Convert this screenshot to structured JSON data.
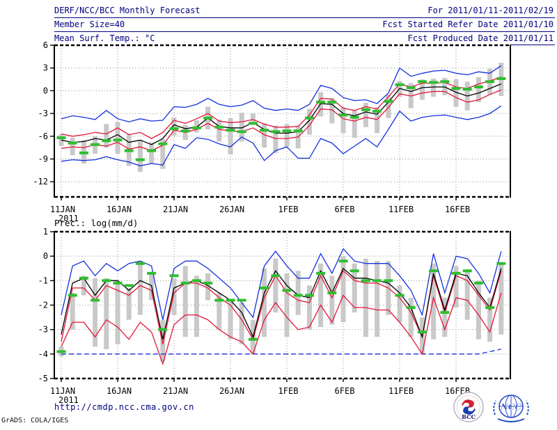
{
  "header": {
    "rows": [
      {
        "left": "DERF/NCC/BCC Monthly Forecast",
        "right": "For 2011/01/11-2011/02/19"
      },
      {
        "left": "Member Size=40",
        "right": "Fcst Started Refer Date 2011/01/10"
      },
      {
        "left": "Mean Surf. Temp.: °C",
        "right": "Fcst Produced Date 2011/01/11"
      }
    ],
    "text_color": "#00007e"
  },
  "footer": {
    "url": "http://cmdp.ncc.cma.gov.cn",
    "credit": "GrADS: COLA/IGES",
    "logos": [
      {
        "name": "bcc-logo",
        "label": "BCC"
      },
      {
        "name": "ncc-logo",
        "label": "NCC"
      }
    ]
  },
  "colors": {
    "envelope_blue": "#1530dd",
    "sigma_red": "#e41538",
    "mean_black": "#000000",
    "obs_green": "#2fbe2f",
    "spread_bar_gray": "#c9c9c9",
    "grid_gray": "#909090",
    "header_navy": "#00007e"
  },
  "chart_data": [
    {
      "type": "line",
      "title": "Mean Surf. Temp.: °C",
      "x_tick_labels": [
        "11JAN",
        "16JAN",
        "21JAN",
        "26JAN",
        "1FEB",
        "6FEB",
        "11FEB",
        "16FEB"
      ],
      "x_sub_label": "2011",
      "x_start": "11JAN2011",
      "x_end": "19FEB2011",
      "n_points": 40,
      "ylim": [
        -14,
        6
      ],
      "yticks": [
        6,
        3,
        0,
        -3,
        -6,
        -9,
        -12
      ],
      "grid": "dotted",
      "legend": "none",
      "bars": {
        "name": "ensemble-spread-bar",
        "lo": [
          -7.3,
          -8.5,
          -9.6,
          -8.3,
          -7.5,
          -8.3,
          -9.9,
          -10.7,
          -9.6,
          -10.3,
          -5.9,
          -6.5,
          -5.5,
          -5.1,
          -6.7,
          -8.4,
          -6.7,
          -4.1,
          -7.5,
          -8.2,
          -7.4,
          -7.6,
          -5.8,
          -3.4,
          -4.3,
          -5.6,
          -6.2,
          -4.8,
          -5.6,
          -3.6,
          -0.8,
          -2.3,
          -1.2,
          -0.8,
          -0.6,
          -2.1,
          -2.6,
          -1.5,
          -0.5,
          -0.7
        ],
        "hi": [
          -5.7,
          -6.2,
          -6.5,
          -6.0,
          -4.4,
          -4.1,
          -5.8,
          -6.6,
          -6.8,
          -6.4,
          -3.5,
          -4.5,
          -3.9,
          -2.1,
          -3.8,
          -3.6,
          -2.9,
          -3.0,
          -4.3,
          -4.6,
          -4.4,
          -4.6,
          -2.4,
          -0.2,
          -1.0,
          -2.2,
          -2.6,
          -1.6,
          -2.2,
          -0.5,
          1.3,
          1.0,
          1.5,
          1.6,
          1.7,
          1.5,
          1.2,
          1.8,
          2.9,
          3.7
        ]
      },
      "series": [
        {
          "name": "ensemble-max",
          "color": "#1530dd",
          "style": "line",
          "values": [
            -3.7,
            -3.3,
            -3.5,
            -3.8,
            -2.6,
            -3.7,
            -4.1,
            -3.7,
            -4.0,
            -3.9,
            -2.1,
            -2.2,
            -1.8,
            -1.0,
            -1.8,
            -2.1,
            -1.9,
            -1.3,
            -2.3,
            -2.6,
            -2.4,
            -2.6,
            -1.8,
            0.7,
            0.3,
            -0.9,
            -1.3,
            -1.2,
            -1.7,
            -0.3,
            3.0,
            1.9,
            2.3,
            2.6,
            2.7,
            2.3,
            2.1,
            2.5,
            2.3,
            3.3
          ]
        },
        {
          "name": "ensemble-min",
          "color": "#1530dd",
          "style": "line",
          "values": [
            -9.3,
            -9.1,
            -9.2,
            -9.1,
            -8.7,
            -9.1,
            -9.4,
            -9.9,
            -9.6,
            -9.8,
            -7.1,
            -7.6,
            -6.2,
            -6.4,
            -7.0,
            -7.4,
            -6.1,
            -6.9,
            -9.2,
            -7.9,
            -7.4,
            -8.9,
            -8.9,
            -6.3,
            -6.9,
            -8.3,
            -7.3,
            -6.3,
            -7.4,
            -5.1,
            -2.7,
            -4.0,
            -3.5,
            -3.3,
            -3.2,
            -3.5,
            -3.8,
            -3.5,
            -3.0,
            -2.0
          ]
        },
        {
          "name": "upper-sigma",
          "color": "#e41538",
          "style": "line",
          "values": [
            -5.7,
            -6.0,
            -5.8,
            -5.5,
            -5.7,
            -4.9,
            -5.8,
            -5.5,
            -6.3,
            -5.5,
            -3.9,
            -4.3,
            -3.7,
            -3.0,
            -4.0,
            -4.2,
            -4.1,
            -3.8,
            -4.4,
            -4.8,
            -4.8,
            -4.7,
            -3.2,
            -1.0,
            -1.1,
            -2.3,
            -2.6,
            -2.1,
            -2.4,
            -0.8,
            0.9,
            0.5,
            1.0,
            1.0,
            1.1,
            0.5,
            0.3,
            0.9,
            1.3,
            1.8
          ]
        },
        {
          "name": "lower-sigma",
          "color": "#e41538",
          "style": "line",
          "values": [
            -7.6,
            -7.4,
            -7.5,
            -7.1,
            -7.3,
            -6.8,
            -7.7,
            -7.4,
            -7.9,
            -7.2,
            -5.2,
            -5.5,
            -5.1,
            -4.3,
            -5.1,
            -5.3,
            -5.4,
            -4.9,
            -5.8,
            -6.3,
            -6.3,
            -6.1,
            -4.6,
            -2.4,
            -2.5,
            -3.7,
            -4.0,
            -3.5,
            -3.8,
            -2.2,
            -0.4,
            -0.7,
            -0.3,
            -0.1,
            -0.1,
            -0.9,
            -1.5,
            -1.2,
            -0.5,
            0.1
          ]
        },
        {
          "name": "ensemble-mean",
          "color": "#000000",
          "style": "line",
          "values": [
            -6.5,
            -6.8,
            -6.7,
            -6.3,
            -6.5,
            -5.8,
            -6.8,
            -6.5,
            -7.1,
            -6.3,
            -4.5,
            -5.0,
            -4.8,
            -3.6,
            -4.7,
            -4.9,
            -4.9,
            -4.2,
            -5.1,
            -5.6,
            -5.6,
            -5.4,
            -3.9,
            -1.7,
            -1.8,
            -3.0,
            -3.3,
            -2.8,
            -3.1,
            -1.5,
            0.3,
            -0.1,
            0.4,
            0.5,
            0.5,
            -0.2,
            -0.7,
            -0.3,
            0.3,
            0.9
          ]
        },
        {
          "name": "observation-dash",
          "color": "#2fbe2f",
          "style": "ticks",
          "values": [
            -6.2,
            -6.9,
            -8.2,
            -7.1,
            -6.6,
            -6.5,
            -7.9,
            -9.1,
            -7.9,
            -7.0,
            -5.0,
            -5.3,
            -4.9,
            -3.6,
            -4.8,
            -5.2,
            -5.4,
            -4.3,
            -5.2,
            -5.4,
            -5.3,
            -5.3,
            -3.6,
            -1.5,
            -1.5,
            -3.2,
            -3.5,
            -2.5,
            -2.7,
            -1.4,
            0.8,
            0.4,
            1.2,
            1.1,
            1.2,
            0.3,
            0.2,
            0.5,
            1.2,
            1.6
          ]
        }
      ]
    },
    {
      "type": "line",
      "title": "Prec.: log(mm/d)",
      "x_tick_labels": [
        "11JAN",
        "16JAN",
        "21JAN",
        "26JAN",
        "1FEB",
        "6FEB",
        "11FEB",
        "16FEB"
      ],
      "x_sub_label": "2011",
      "x_start": "11JAN2011",
      "x_end": "19FEB2011",
      "n_points": 40,
      "ylim": [
        -5,
        1
      ],
      "yticks": [
        1,
        0,
        -1,
        -2,
        -3,
        -4,
        -5
      ],
      "grid": "dotted",
      "legend": "none",
      "bars": {
        "name": "ensemble-spread-bar",
        "lo": [
          -4.1,
          -3.0,
          -1.6,
          -3.7,
          -3.8,
          -3.6,
          -2.6,
          -2.4,
          -1.8,
          -4.3,
          -2.4,
          -3.3,
          -3.3,
          -1.8,
          -3.0,
          -3.4,
          -3.6,
          -4.0,
          -3.3,
          -2.3,
          -3.3,
          -2.4,
          -3.0,
          -2.9,
          -2.8,
          -2.7,
          -2.3,
          -3.3,
          -3.3,
          -2.4,
          -2.7,
          -3.3,
          -4.0,
          -3.4,
          -3.3,
          -2.1,
          -2.6,
          -3.4,
          -3.5,
          -3.2
        ],
        "hi": [
          -3.7,
          -1.5,
          -0.8,
          -0.9,
          -0.9,
          -1.0,
          -1.3,
          -0.2,
          -0.7,
          -2.6,
          -0.9,
          -0.4,
          -0.8,
          -0.7,
          -1.5,
          -1.8,
          -1.9,
          -2.6,
          -0.5,
          -0.1,
          -0.7,
          -0.6,
          -1.2,
          -0.3,
          -0.8,
          0.0,
          -0.3,
          -0.1,
          -0.2,
          -0.2,
          -1.2,
          -1.7,
          -2.5,
          -0.3,
          -1.7,
          -0.4,
          -0.6,
          -1.0,
          -1.7,
          -0.3
        ]
      },
      "series": [
        {
          "name": "ensemble-max",
          "color": "#1530dd",
          "style": "line",
          "values": [
            -2.4,
            -0.4,
            -0.2,
            -0.8,
            -0.3,
            -0.6,
            -0.3,
            -0.2,
            -0.4,
            -2.6,
            -0.5,
            -0.2,
            -0.2,
            -0.5,
            -0.9,
            -1.3,
            -1.9,
            -2.5,
            -0.4,
            0.2,
            -0.4,
            -0.9,
            -0.9,
            0.1,
            -0.7,
            0.3,
            -0.2,
            -0.3,
            -0.3,
            -0.3,
            -0.8,
            -1.4,
            -2.4,
            0.1,
            -1.5,
            0.0,
            -0.1,
            -0.7,
            -1.5,
            0.2
          ]
        },
        {
          "name": "ensemble-min",
          "color": "#1530dd",
          "style": "dashed",
          "values": [
            -4,
            -4,
            -4,
            -4,
            -4,
            -4,
            -4,
            -4,
            -4,
            -4,
            -4,
            -4,
            -4,
            -4,
            -4,
            -4,
            -4,
            -4,
            -4,
            -4,
            -4,
            -4,
            -4,
            -4,
            -4,
            -4,
            -4,
            -4,
            -4,
            -4,
            -4,
            -4,
            -4,
            -4,
            -4,
            -4,
            -4,
            -4,
            -3.9,
            -3.8
          ]
        },
        {
          "name": "upper-sigma",
          "color": "#e41538",
          "style": "line",
          "values": [
            -3.5,
            -1.3,
            -1.3,
            -1.8,
            -1.2,
            -1.4,
            -1.6,
            -1.2,
            -1.4,
            -3.6,
            -1.5,
            -1.1,
            -1.1,
            -1.3,
            -1.7,
            -2.0,
            -2.6,
            -3.4,
            -1.7,
            -0.8,
            -1.5,
            -1.8,
            -1.9,
            -0.8,
            -1.7,
            -0.6,
            -1.0,
            -1.1,
            -1.1,
            -1.3,
            -1.7,
            -2.3,
            -3.3,
            -0.8,
            -2.3,
            -0.8,
            -1.0,
            -1.6,
            -2.2,
            -0.6
          ]
        },
        {
          "name": "lower-sigma",
          "color": "#e41538",
          "style": "line",
          "values": [
            -3.7,
            -2.7,
            -2.7,
            -3.3,
            -2.6,
            -2.9,
            -3.4,
            -2.7,
            -3.1,
            -4.4,
            -2.8,
            -2.4,
            -2.4,
            -2.6,
            -3.0,
            -3.3,
            -3.5,
            -4.0,
            -2.6,
            -1.9,
            -2.5,
            -3.0,
            -2.9,
            -2.0,
            -2.7,
            -1.6,
            -2.1,
            -2.1,
            -2.2,
            -2.2,
            -2.7,
            -3.3,
            -4.0,
            -1.7,
            -3.0,
            -1.7,
            -1.8,
            -2.4,
            -3.1,
            -1.5
          ]
        },
        {
          "name": "ensemble-mean",
          "color": "#000000",
          "style": "line",
          "values": [
            -3.2,
            -1.1,
            -0.9,
            -1.6,
            -1.0,
            -1.0,
            -1.4,
            -1.0,
            -1.2,
            -3.4,
            -1.3,
            -1.1,
            -1.0,
            -1.2,
            -1.5,
            -1.8,
            -2.3,
            -3.3,
            -1.5,
            -0.6,
            -1.2,
            -1.6,
            -1.7,
            -0.6,
            -1.5,
            -0.5,
            -0.9,
            -0.9,
            -1.0,
            -1.1,
            -1.5,
            -2.1,
            -3.3,
            -0.7,
            -2.2,
            -0.7,
            -0.8,
            -1.5,
            -2.1,
            -0.5
          ]
        },
        {
          "name": "observation-dash",
          "color": "#2fbe2f",
          "style": "ticks",
          "values": [
            -3.9,
            -1.6,
            -0.9,
            -1.8,
            -1.0,
            -1.1,
            -1.2,
            -0.3,
            -0.7,
            -3.0,
            -0.8,
            -1.1,
            -1.0,
            -1.1,
            -1.8,
            -1.8,
            -1.8,
            -3.4,
            -1.3,
            -0.8,
            -1.4,
            -1.6,
            -1.6,
            -0.7,
            -1.5,
            -0.2,
            -0.6,
            -1.0,
            -1.0,
            -1.0,
            -1.6,
            -2.1,
            -3.1,
            -0.6,
            -2.3,
            -0.7,
            -0.6,
            -1.1,
            -2.1,
            -0.3
          ]
        }
      ]
    }
  ]
}
